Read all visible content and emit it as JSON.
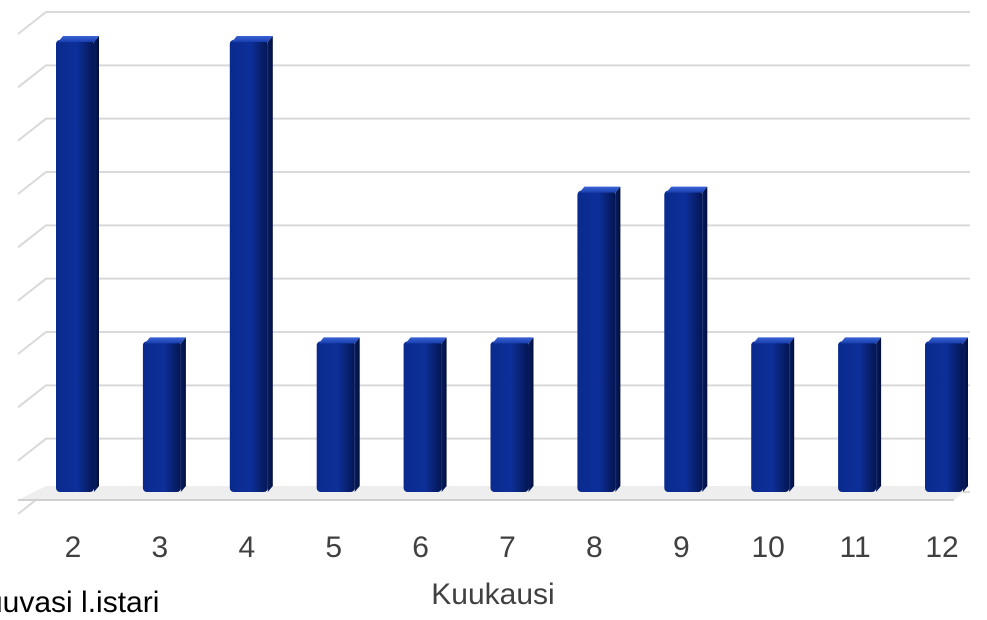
{
  "chart_data": {
    "type": "bar",
    "title": "",
    "xlabel": "Kuukausi",
    "ylabel": "",
    "categories": [
      "2",
      "3",
      "4",
      "5",
      "6",
      "7",
      "8",
      "9",
      "10",
      "11",
      "12"
    ],
    "values": [
      3,
      1,
      3,
      1,
      1,
      1,
      2,
      2,
      1,
      1,
      1
    ],
    "ylim": [
      0,
      3.2
    ],
    "grid": true,
    "legend": "none",
    "colors": {
      "bar_top": "#1f45b4",
      "bar_mid": "#0b2a8f",
      "bar_bottom": "#051a5c",
      "grid": "#d9d9d9",
      "text": "#404040"
    }
  },
  "footer": {
    "partial_text": "uuvasi l.istari"
  }
}
